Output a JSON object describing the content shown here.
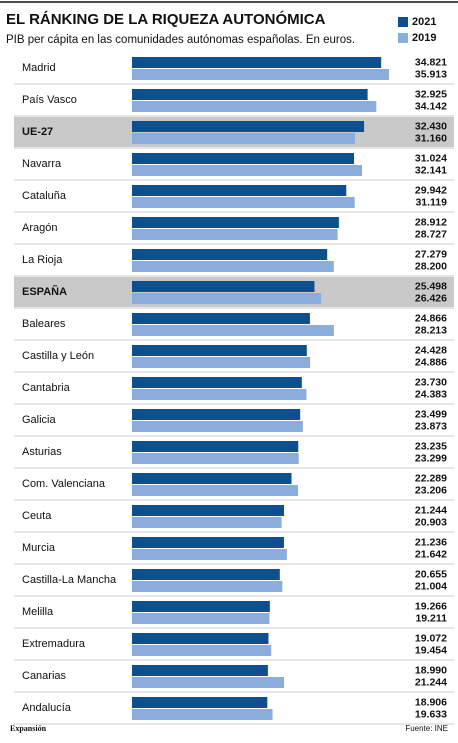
{
  "chart_data": {
    "type": "grouped-hbar",
    "title": "EL RÁNKING DE LA RIQUEZA AUTONÓMICA",
    "subtitle": "PIB per cápita en las comunidades autónomas españolas. En euros.",
    "categories": [
      "Madrid",
      "País Vasco",
      "UE-27",
      "Navarra",
      "Cataluña",
      "Aragón",
      "La Rioja",
      "ESPAÑA",
      "Baleares",
      "Castilla y León",
      "Cantabria",
      "Galicia",
      "Asturias",
      "Com. Valenciana",
      "Ceuta",
      "Murcia",
      "Castilla-La Mancha",
      "Melilla",
      "Extremadura",
      "Canarias",
      "Andalucía"
    ],
    "highlighted": [
      false,
      false,
      true,
      false,
      false,
      false,
      false,
      true,
      false,
      false,
      false,
      false,
      false,
      false,
      false,
      false,
      false,
      false,
      false,
      false,
      false
    ],
    "series": [
      {
        "name": "2021",
        "color": "#0e4f90",
        "values": [
          34821,
          32925,
          32430,
          31024,
          29942,
          28912,
          27279,
          25498,
          24866,
          24428,
          23730,
          23499,
          23235,
          22289,
          21244,
          21236,
          20655,
          19266,
          19072,
          18990,
          18906
        ],
        "value_labels": [
          "34.821",
          "32.925",
          "32.430",
          "31.024",
          "29.942",
          "28.912",
          "27.279",
          "25.498",
          "24.866",
          "24.428",
          "23.730",
          "23.499",
          "23.235",
          "22.289",
          "21.244",
          "21.236",
          "20.655",
          "19.266",
          "19.072",
          "18.990",
          "18.906"
        ]
      },
      {
        "name": "2019",
        "color": "#8badde",
        "values": [
          35913,
          34142,
          31160,
          32141,
          31119,
          28727,
          28200,
          26426,
          28213,
          24886,
          24383,
          23873,
          23299,
          23206,
          20903,
          21642,
          21004,
          19211,
          19454,
          21244,
          19633
        ],
        "value_labels": [
          "35.913",
          "34.142",
          "31.160",
          "32.141",
          "31.119",
          "28.727",
          "28.200",
          "26.426",
          "28.213",
          "24.886",
          "24.383",
          "23.873",
          "23.299",
          "23.206",
          "20.903",
          "21.642",
          "21.004",
          "19.211",
          "19.454",
          "21.244",
          "19.633"
        ]
      }
    ],
    "brand": "Expansión",
    "source": "Fuente: INE"
  }
}
